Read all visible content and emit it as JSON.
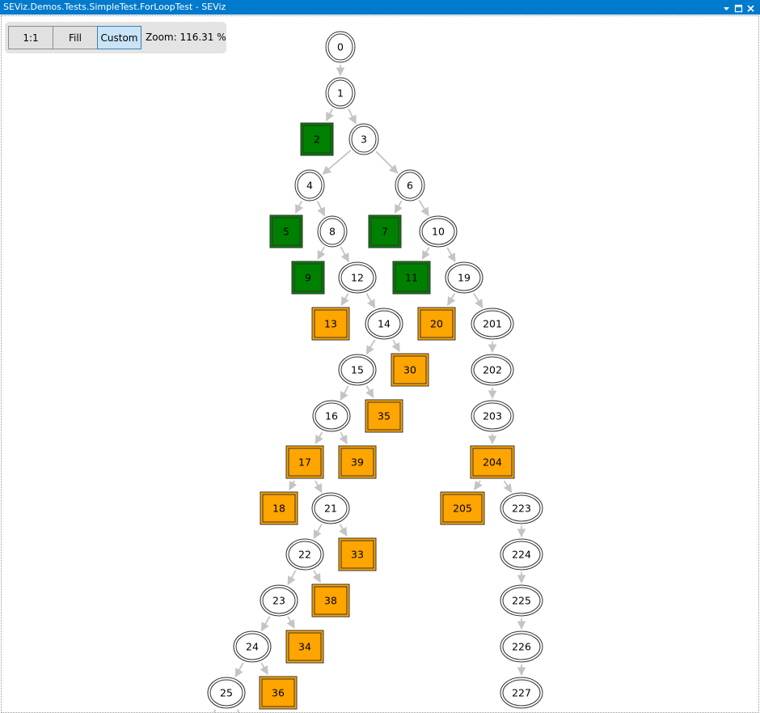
{
  "window": {
    "title": "SEViz.Demos.Tests.SimpleTest.ForLoopTest - SEViz",
    "accent": "#007acc"
  },
  "toolbar": {
    "btn_1to1": "1:1",
    "btn_fill": "Fill",
    "btn_custom": "Custom",
    "zoom_text": "Zoom: 116.31 %"
  },
  "colors": {
    "edge": "#c4c4c4",
    "green_fill": "#008000",
    "orange_fill": "#ffa500",
    "node_stroke": "#333333"
  },
  "graph": {
    "nodes": [
      {
        "id": "0",
        "label": "0",
        "shape": "ellipse"
      },
      {
        "id": "1",
        "label": "1",
        "shape": "ellipse"
      },
      {
        "id": "2",
        "label": "2",
        "shape": "box-green"
      },
      {
        "id": "3",
        "label": "3",
        "shape": "ellipse"
      },
      {
        "id": "4",
        "label": "4",
        "shape": "ellipse"
      },
      {
        "id": "6",
        "label": "6",
        "shape": "ellipse"
      },
      {
        "id": "5",
        "label": "5",
        "shape": "box-green"
      },
      {
        "id": "8",
        "label": "8",
        "shape": "ellipse"
      },
      {
        "id": "7",
        "label": "7",
        "shape": "box-green"
      },
      {
        "id": "10",
        "label": "10",
        "shape": "ellipse"
      },
      {
        "id": "9",
        "label": "9",
        "shape": "box-green"
      },
      {
        "id": "12",
        "label": "12",
        "shape": "ellipse"
      },
      {
        "id": "11",
        "label": "11",
        "shape": "box-green"
      },
      {
        "id": "19",
        "label": "19",
        "shape": "ellipse"
      },
      {
        "id": "13",
        "label": "13",
        "shape": "box-orange"
      },
      {
        "id": "14",
        "label": "14",
        "shape": "ellipse"
      },
      {
        "id": "20",
        "label": "20",
        "shape": "box-orange"
      },
      {
        "id": "201",
        "label": "201",
        "shape": "ellipse"
      },
      {
        "id": "15",
        "label": "15",
        "shape": "ellipse"
      },
      {
        "id": "30",
        "label": "30",
        "shape": "box-orange"
      },
      {
        "id": "202",
        "label": "202",
        "shape": "ellipse"
      },
      {
        "id": "16",
        "label": "16",
        "shape": "ellipse"
      },
      {
        "id": "35",
        "label": "35",
        "shape": "box-orange"
      },
      {
        "id": "203",
        "label": "203",
        "shape": "ellipse"
      },
      {
        "id": "17",
        "label": "17",
        "shape": "box-orange"
      },
      {
        "id": "39",
        "label": "39",
        "shape": "box-orange"
      },
      {
        "id": "204",
        "label": "204",
        "shape": "box-orange"
      },
      {
        "id": "18",
        "label": "18",
        "shape": "box-orange"
      },
      {
        "id": "21",
        "label": "21",
        "shape": "ellipse"
      },
      {
        "id": "205",
        "label": "205",
        "shape": "box-orange"
      },
      {
        "id": "223",
        "label": "223",
        "shape": "ellipse"
      },
      {
        "id": "22",
        "label": "22",
        "shape": "ellipse"
      },
      {
        "id": "33",
        "label": "33",
        "shape": "box-orange"
      },
      {
        "id": "224",
        "label": "224",
        "shape": "ellipse"
      },
      {
        "id": "23",
        "label": "23",
        "shape": "ellipse"
      },
      {
        "id": "38",
        "label": "38",
        "shape": "box-orange"
      },
      {
        "id": "225",
        "label": "225",
        "shape": "ellipse"
      },
      {
        "id": "24",
        "label": "24",
        "shape": "ellipse"
      },
      {
        "id": "34",
        "label": "34",
        "shape": "box-orange"
      },
      {
        "id": "226",
        "label": "226",
        "shape": "ellipse"
      },
      {
        "id": "25",
        "label": "25",
        "shape": "ellipse"
      },
      {
        "id": "36",
        "label": "36",
        "shape": "box-orange"
      },
      {
        "id": "227",
        "label": "227",
        "shape": "ellipse"
      }
    ],
    "edges": [
      [
        "0",
        "1"
      ],
      [
        "1",
        "2"
      ],
      [
        "1",
        "3"
      ],
      [
        "3",
        "4"
      ],
      [
        "3",
        "6"
      ],
      [
        "4",
        "5"
      ],
      [
        "4",
        "8"
      ],
      [
        "6",
        "7"
      ],
      [
        "6",
        "10"
      ],
      [
        "8",
        "9"
      ],
      [
        "8",
        "12"
      ],
      [
        "10",
        "11"
      ],
      [
        "10",
        "19"
      ],
      [
        "12",
        "13"
      ],
      [
        "12",
        "14"
      ],
      [
        "19",
        "20"
      ],
      [
        "19",
        "201"
      ],
      [
        "14",
        "15"
      ],
      [
        "14",
        "30"
      ],
      [
        "201",
        "202"
      ],
      [
        "15",
        "16"
      ],
      [
        "15",
        "35"
      ],
      [
        "202",
        "203"
      ],
      [
        "16",
        "17"
      ],
      [
        "16",
        "39"
      ],
      [
        "203",
        "204"
      ],
      [
        "17",
        "18"
      ],
      [
        "17",
        "21"
      ],
      [
        "204",
        "205"
      ],
      [
        "204",
        "223"
      ],
      [
        "21",
        "22"
      ],
      [
        "21",
        "33"
      ],
      [
        "223",
        "224"
      ],
      [
        "22",
        "23"
      ],
      [
        "22",
        "38"
      ],
      [
        "224",
        "225"
      ],
      [
        "23",
        "24"
      ],
      [
        "23",
        "34"
      ],
      [
        "225",
        "226"
      ],
      [
        "24",
        "25"
      ],
      [
        "24",
        "36"
      ],
      [
        "226",
        "227"
      ]
    ]
  }
}
